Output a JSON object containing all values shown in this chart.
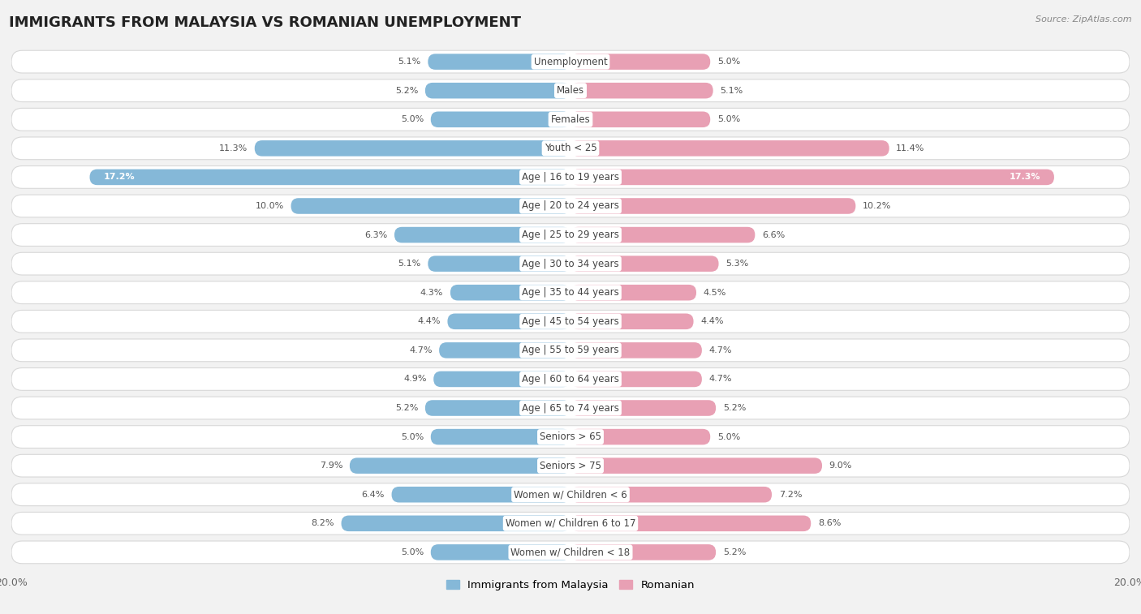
{
  "title": "IMMIGRANTS FROM MALAYSIA VS ROMANIAN UNEMPLOYMENT",
  "source": "Source: ZipAtlas.com",
  "categories": [
    "Unemployment",
    "Males",
    "Females",
    "Youth < 25",
    "Age | 16 to 19 years",
    "Age | 20 to 24 years",
    "Age | 25 to 29 years",
    "Age | 30 to 34 years",
    "Age | 35 to 44 years",
    "Age | 45 to 54 years",
    "Age | 55 to 59 years",
    "Age | 60 to 64 years",
    "Age | 65 to 74 years",
    "Seniors > 65",
    "Seniors > 75",
    "Women w/ Children < 6",
    "Women w/ Children 6 to 17",
    "Women w/ Children < 18"
  ],
  "left_values": [
    5.1,
    5.2,
    5.0,
    11.3,
    17.2,
    10.0,
    6.3,
    5.1,
    4.3,
    4.4,
    4.7,
    4.9,
    5.2,
    5.0,
    7.9,
    6.4,
    8.2,
    5.0
  ],
  "right_values": [
    5.0,
    5.1,
    5.0,
    11.4,
    17.3,
    10.2,
    6.6,
    5.3,
    4.5,
    4.4,
    4.7,
    4.7,
    5.2,
    5.0,
    9.0,
    7.2,
    8.6,
    5.2
  ],
  "left_color": "#85b8d8",
  "right_color": "#e8a0b4",
  "xlim": 20.0,
  "background_color": "#f2f2f2",
  "row_color": "#ffffff",
  "row_border": "#d8d8d8",
  "legend_left_label": "Immigrants from Malaysia",
  "legend_right_label": "Romanian",
  "title_fontsize": 13,
  "label_fontsize": 8.5,
  "value_fontsize": 8.0,
  "white_text_threshold": 14.0
}
